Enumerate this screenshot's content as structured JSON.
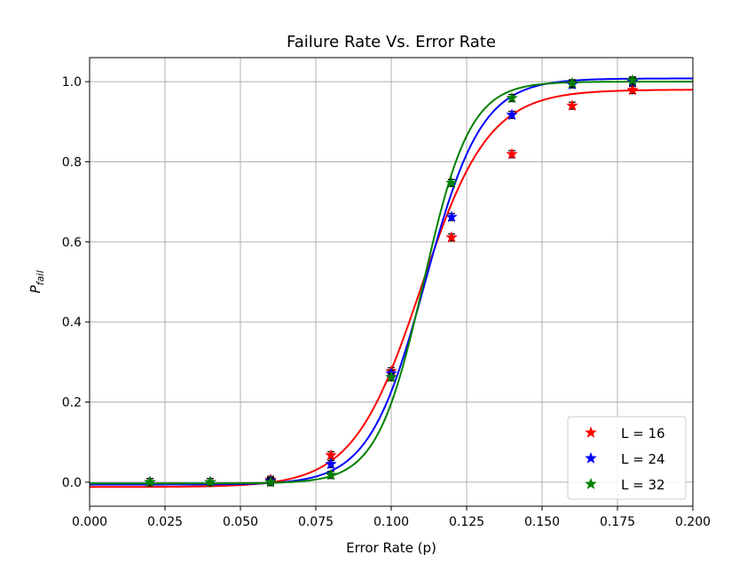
{
  "chart_data": {
    "type": "line",
    "title": "Failure Rate Vs. Error Rate",
    "xlabel": "Error Rate (p)",
    "ylabel_main": "P",
    "ylabel_sub": "fail",
    "xlim": [
      0.0,
      0.2
    ],
    "ylim": [
      -0.06,
      1.06
    ],
    "xticks": [
      0.0,
      0.025,
      0.05,
      0.075,
      0.1,
      0.125,
      0.15,
      0.175,
      0.2
    ],
    "xtick_labels": [
      "0.000",
      "0.025",
      "0.050",
      "0.075",
      "0.100",
      "0.125",
      "0.150",
      "0.175",
      "0.200"
    ],
    "yticks": [
      0.0,
      0.2,
      0.4,
      0.6,
      0.8,
      1.0
    ],
    "ytick_labels": [
      "0.0",
      "0.2",
      "0.4",
      "0.6",
      "0.8",
      "1.0"
    ],
    "grid": true,
    "legend_position": "lower-right",
    "series": [
      {
        "name": "L = 16",
        "color": "#ff0000",
        "x": [
          0.02,
          0.04,
          0.06,
          0.08,
          0.1,
          0.12,
          0.14,
          0.16,
          0.18
        ],
        "y": [
          0.0,
          0.0,
          0.006,
          0.067,
          0.277,
          0.611,
          0.819,
          0.94,
          0.979
        ],
        "fit": {
          "lower": -0.012,
          "upper": 0.98,
          "center": 0.1098,
          "scale": 0.0112
        }
      },
      {
        "name": "L = 24",
        "color": "#0000ff",
        "x": [
          0.02,
          0.04,
          0.06,
          0.08,
          0.1,
          0.12,
          0.14,
          0.16,
          0.18
        ],
        "y": [
          0.0,
          0.0,
          0.003,
          0.045,
          0.271,
          0.662,
          0.917,
          0.993,
          1.0
        ],
        "fit": {
          "lower": -0.006,
          "upper": 1.008,
          "center": 0.1113,
          "scale": 0.0093
        }
      },
      {
        "name": "L = 32",
        "color": "#008000",
        "x": [
          0.02,
          0.04,
          0.06,
          0.08,
          0.1,
          0.12,
          0.14,
          0.16,
          0.18
        ],
        "y": [
          0.0,
          0.0,
          0.0,
          0.018,
          0.262,
          0.747,
          0.959,
          0.996,
          1.003
        ],
        "fit": {
          "lower": -0.003,
          "upper": 1.0,
          "center": 0.1107,
          "scale": 0.0077
        }
      }
    ]
  }
}
